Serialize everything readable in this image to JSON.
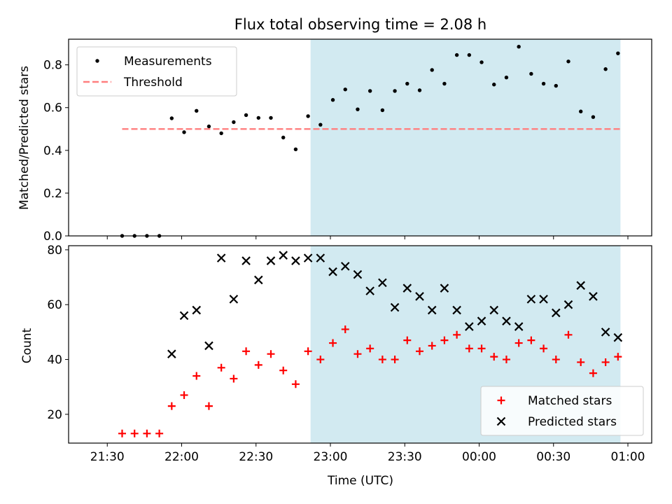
{
  "chart_data": [
    {
      "type": "scatter",
      "title": "Flux total observing time = 2.08 h",
      "ylabel": "Matched/Predicted stars",
      "xlabel": "",
      "ylim": [
        0,
        0.92
      ],
      "yticks": [
        "0.0",
        "0.2",
        "0.4",
        "0.6",
        "0.8"
      ],
      "shaded_span": [
        "22:52",
        "00:57"
      ],
      "shade_color": "#add8e6",
      "series": [
        {
          "name": "Measurements",
          "marker": "dot",
          "color": "#000000",
          "x": [
            "21:36",
            "21:41",
            "21:46",
            "21:51",
            "21:56",
            "22:01",
            "22:06",
            "22:11",
            "22:16",
            "22:21",
            "22:26",
            "22:31",
            "22:36",
            "22:41",
            "22:46",
            "22:51",
            "22:56",
            "23:01",
            "23:06",
            "23:11",
            "23:16",
            "23:21",
            "23:26",
            "23:31",
            "23:36",
            "23:41",
            "23:46",
            "23:51",
            "23:56",
            "00:01",
            "00:06",
            "00:11",
            "00:16",
            "00:21",
            "00:26",
            "00:31",
            "00:36",
            "00:41",
            "00:46",
            "00:51",
            "00:56"
          ],
          "y": [
            0.0,
            0.0,
            0.0,
            0.0,
            0.55,
            0.485,
            0.585,
            0.512,
            0.48,
            0.532,
            0.565,
            0.552,
            0.552,
            0.46,
            0.405,
            0.56,
            0.52,
            0.636,
            0.685,
            0.592,
            0.678,
            0.588,
            0.678,
            0.712,
            0.681,
            0.776,
            0.712,
            0.846,
            0.846,
            0.812,
            0.708,
            0.741,
            0.885,
            0.758,
            0.712,
            0.702,
            0.816,
            0.582,
            0.556,
            0.78,
            0.854
          ]
        },
        {
          "name": "Threshold",
          "marker": "dashed-line",
          "color": "#ff7f7f",
          "x": [
            "21:36",
            "00:57"
          ],
          "y": [
            0.5,
            0.5
          ]
        }
      ],
      "legend_position": "upper-left"
    },
    {
      "type": "scatter",
      "xlabel": "Time (UTC)",
      "ylabel": "Count",
      "ylim": [
        9.5,
        81.5
      ],
      "yticks": [
        "20",
        "40",
        "60",
        "80"
      ],
      "xticks": [
        "21:30",
        "22:00",
        "22:30",
        "23:00",
        "23:30",
        "00:00",
        "00:30",
        "01:00"
      ],
      "shaded_span": [
        "22:52",
        "00:57"
      ],
      "shade_color": "#add8e6",
      "series": [
        {
          "name": "Matched stars",
          "marker": "plus",
          "color": "#ff0000",
          "x": [
            "21:36",
            "21:41",
            "21:46",
            "21:51",
            "21:56",
            "22:01",
            "22:06",
            "22:11",
            "22:16",
            "22:21",
            "22:26",
            "22:31",
            "22:36",
            "22:41",
            "22:46",
            "22:51",
            "22:56",
            "23:01",
            "23:06",
            "23:11",
            "23:16",
            "23:21",
            "23:26",
            "23:31",
            "23:36",
            "23:41",
            "23:46",
            "23:51",
            "23:56",
            "00:01",
            "00:06",
            "00:11",
            "00:16",
            "00:21",
            "00:26",
            "00:31",
            "00:36",
            "00:41",
            "00:46",
            "00:51",
            "00:56"
          ],
          "y": [
            13,
            13,
            13,
            13,
            23,
            27,
            34,
            23,
            37,
            33,
            43,
            38,
            42,
            36,
            31,
            43,
            40,
            46,
            51,
            42,
            44,
            40,
            40,
            47,
            43,
            45,
            47,
            49,
            44,
            44,
            41,
            40,
            46,
            47,
            44,
            40,
            49,
            39,
            35,
            39,
            41
          ]
        },
        {
          "name": "Predicted stars",
          "marker": "x",
          "color": "#000000",
          "x": [
            "21:56",
            "22:01",
            "22:06",
            "22:11",
            "22:16",
            "22:21",
            "22:26",
            "22:31",
            "22:36",
            "22:41",
            "22:46",
            "22:51",
            "22:56",
            "23:01",
            "23:06",
            "23:11",
            "23:16",
            "23:21",
            "23:26",
            "23:31",
            "23:36",
            "23:41",
            "23:46",
            "23:51",
            "23:56",
            "00:01",
            "00:06",
            "00:11",
            "00:16",
            "00:21",
            "00:26",
            "00:31",
            "00:36",
            "00:41",
            "00:46",
            "00:51",
            "00:56"
          ],
          "y": [
            42,
            56,
            58,
            45,
            77,
            62,
            76,
            69,
            76,
            78,
            76,
            77,
            77,
            72,
            74,
            71,
            65,
            68,
            59,
            66,
            63,
            58,
            66,
            58,
            52,
            54,
            58,
            54,
            52,
            62,
            62,
            57,
            60,
            67,
            63,
            50,
            48
          ]
        }
      ],
      "legend_position": "lower-right"
    }
  ]
}
